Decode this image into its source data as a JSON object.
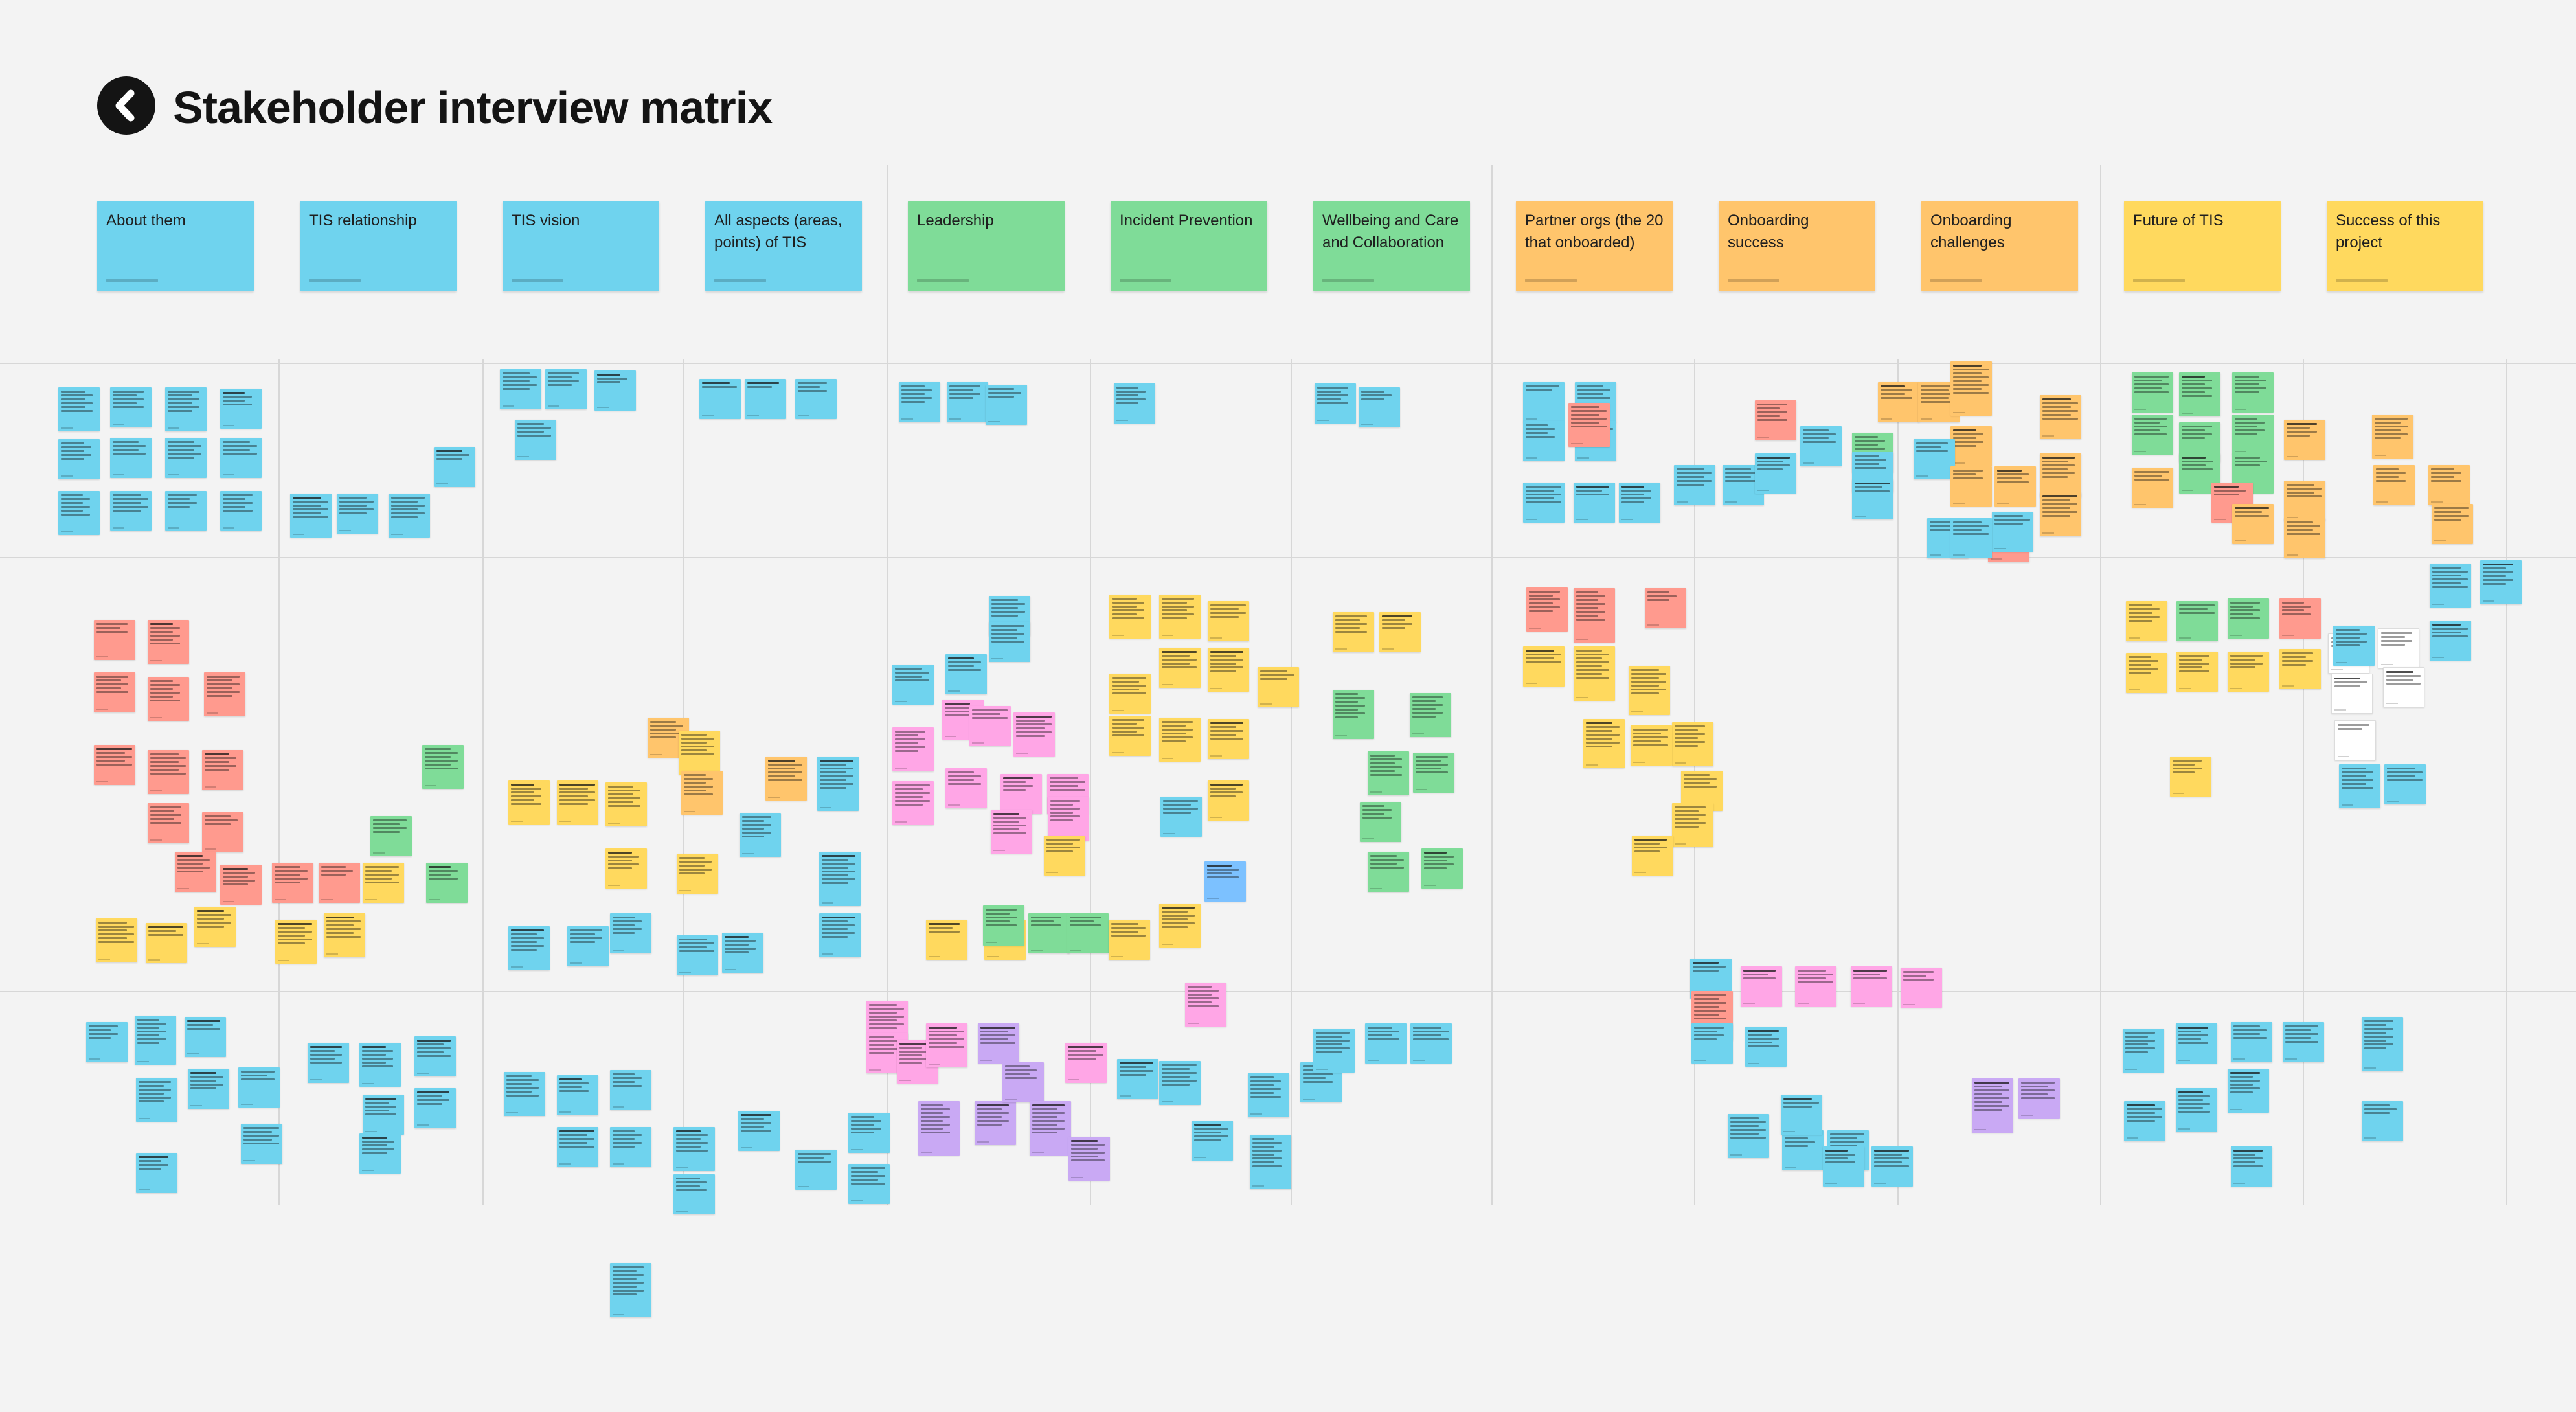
{
  "board": {
    "title": "Stakeholder interview matrix",
    "logo_icon": "back-arrow-icon"
  },
  "columns": [
    {
      "label": "About them",
      "color": "#6fd3ee"
    },
    {
      "label": "TIS relationship",
      "color": "#6fd3ee"
    },
    {
      "label": "TIS vision",
      "color": "#6fd3ee"
    },
    {
      "label": "All aspects (areas, points) of TIS",
      "color": "#6fd3ee"
    },
    {
      "label": "Leadership",
      "color": "#7fdc98"
    },
    {
      "label": "Incident Prevention",
      "color": "#7fdc98"
    },
    {
      "label": "Wellbeing and Care and Collaboration",
      "color": "#7fdc98"
    },
    {
      "label": "Partner orgs (the 20 that onboarded)",
      "color": "#ffc56c"
    },
    {
      "label": "Onboarding success",
      "color": "#ffc56c"
    },
    {
      "label": "Onboarding challenges",
      "color": "#ffc56c"
    },
    {
      "label": "Future of TIS",
      "color": "#ffd95e"
    },
    {
      "label": "Success of this project",
      "color": "#ffd95e"
    }
  ],
  "sticky_colors": {
    "b": "#6fd3ee",
    "g": "#7fdc98",
    "y": "#ffd95e",
    "o": "#ffc56c",
    "r": "#ff9a8e",
    "p": "#ffa6e6",
    "v": "#c9a9f4",
    "k": "#7cc1ff",
    "w": "#ffffff"
  }
}
